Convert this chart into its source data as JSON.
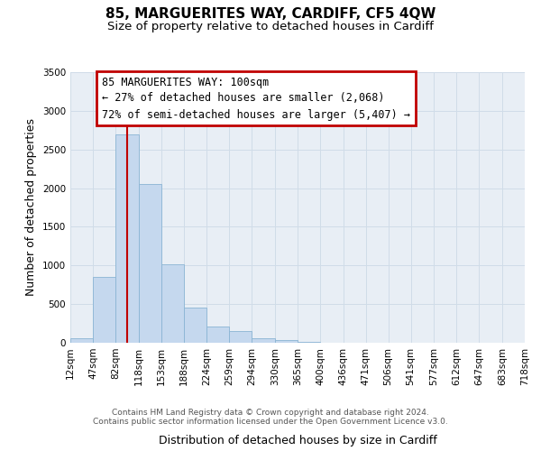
{
  "title": "85, MARGUERITES WAY, CARDIFF, CF5 4QW",
  "subtitle": "Size of property relative to detached houses in Cardiff",
  "bar_values": [
    60,
    850,
    2700,
    2050,
    1020,
    450,
    210,
    150,
    55,
    30,
    15,
    5,
    2,
    1,
    0,
    0,
    0,
    0,
    0,
    0
  ],
  "bin_labels": [
    "12sqm",
    "47sqm",
    "82sqm",
    "118sqm",
    "153sqm",
    "188sqm",
    "224sqm",
    "259sqm",
    "294sqm",
    "330sqm",
    "365sqm",
    "400sqm",
    "436sqm",
    "471sqm",
    "506sqm",
    "541sqm",
    "577sqm",
    "612sqm",
    "647sqm",
    "683sqm",
    "718sqm"
  ],
  "bin_edges": [
    12,
    47,
    82,
    118,
    153,
    188,
    224,
    259,
    294,
    330,
    365,
    400,
    436,
    471,
    506,
    541,
    577,
    612,
    647,
    683,
    718
  ],
  "bar_color": "#c5d8ee",
  "bar_edge_color": "#8ab4d4",
  "grid_color": "#d0dce8",
  "property_line_x": 100,
  "property_line_color": "#c00000",
  "ylim": [
    0,
    3500
  ],
  "ylabel": "Number of detached properties",
  "xlabel": "Distribution of detached houses by size in Cardiff",
  "annotation_title": "85 MARGUERITES WAY: 100sqm",
  "annotation_line1": "← 27% of detached houses are smaller (2,068)",
  "annotation_line2": "72% of semi-detached houses are larger (5,407) →",
  "annotation_box_color": "#c00000",
  "footer_line1": "Contains HM Land Registry data © Crown copyright and database right 2024.",
  "footer_line2": "Contains public sector information licensed under the Open Government Licence v3.0.",
  "title_fontsize": 11,
  "subtitle_fontsize": 9.5,
  "axis_label_fontsize": 9,
  "tick_fontsize": 7.5,
  "annotation_fontsize": 8.5,
  "footer_fontsize": 6.5,
  "bg_color": "#e8eef5"
}
